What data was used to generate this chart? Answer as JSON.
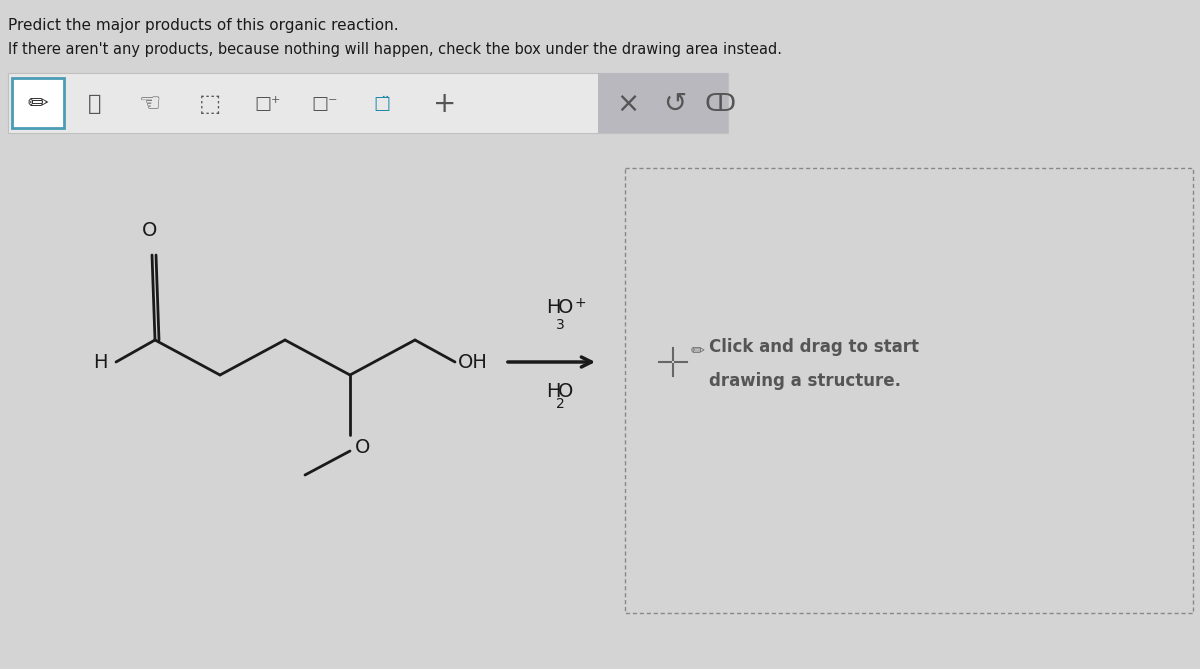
{
  "bg_color": "#d4d4d4",
  "toolbar_bg": "#e8e8e8",
  "toolbar_border": "#c0c0c0",
  "selected_icon_bg": "#ffffff",
  "selected_icon_border": "#4a9cb5",
  "dark_section_bg": "#b8b8be",
  "text_color": "#1a1a1a",
  "icon_color": "#444444",
  "title_line1": "Predict the major products of this organic reaction.",
  "title_line2": "If there aren't any products, because nothing will happen, check the box under the drawing area instead.",
  "draw_prompt_line1": "Click and drag to start",
  "draw_prompt_line2": "drawing a structure.",
  "draw_prompt_color": "#555555",
  "mol_color": "#1a1a1a",
  "arrow_color": "#1a1a1a",
  "dashed_box_color": "#888888",
  "dashed_box_bg": "#d4d4d4"
}
